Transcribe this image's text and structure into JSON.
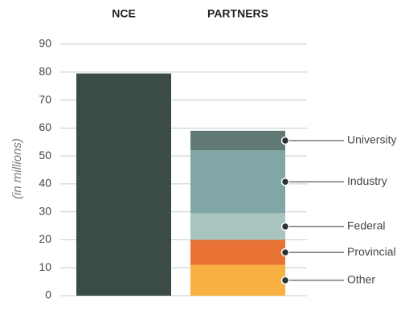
{
  "chart_data": {
    "type": "stacked_bar",
    "ylabel": "(in millions)",
    "categories": [
      "NCE",
      "PARTNERS"
    ],
    "series": [
      {
        "color": "#3a4b48",
        "values": [
          79.5,
          null
        ]
      },
      {
        "name": "Other",
        "color": "#f8b040",
        "values": [
          null,
          11
        ]
      },
      {
        "name": "Provincial",
        "color": "#e97334",
        "values": [
          null,
          9
        ]
      },
      {
        "name": "Federal",
        "color": "#a9c3be",
        "values": [
          null,
          9.5
        ]
      },
      {
        "name": "Industry",
        "color": "#80a7a6",
        "values": [
          null,
          22.5
        ]
      },
      {
        "name": "University",
        "color": "#617a75",
        "values": [
          null,
          7
        ]
      }
    ],
    "ylim": [
      0,
      90
    ],
    "yticks": [
      0,
      10,
      20,
      30,
      40,
      50,
      60,
      70,
      80,
      90
    ],
    "grid": true
  }
}
